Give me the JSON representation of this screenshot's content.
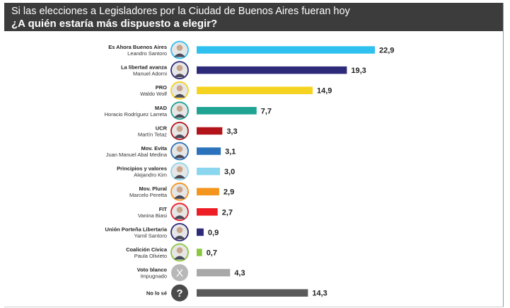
{
  "header": {
    "line1": "Si las elecciones a Legisladores por la Ciudad de Buenos Aires fueran hoy",
    "line2": "¿A quién estaría más dispuesto a elegir?"
  },
  "chart_data": {
    "type": "bar",
    "orientation": "horizontal",
    "title": "Si las elecciones a Legisladores por la Ciudad de Buenos Aires fueran hoy",
    "subtitle": "¿A quién estaría más dispuesto a elegir?",
    "xlim": [
      0,
      22.9
    ],
    "grid": false,
    "legend": "none",
    "categories": [
      {
        "party": "Es Ahora Buenos Aires",
        "name": "Leandro Santoro",
        "value": 22.9,
        "label": "22,9",
        "color": "#2ec0ee",
        "avatar": "portrait",
        "ring": "#2ec0ee"
      },
      {
        "party": "La libertad avanza",
        "name": "Manuel Adorni",
        "value": 19.3,
        "label": "19,3",
        "color": "#2d2a7a",
        "avatar": "portrait",
        "ring": "#2d2a7a"
      },
      {
        "party": "PRO",
        "name": "Waldo Wolf",
        "value": 14.9,
        "label": "14,9",
        "color": "#f5d320",
        "avatar": "portrait",
        "ring": "#f5d320"
      },
      {
        "party": "MAD",
        "name": "Horacio Rodríguez Larreta",
        "value": 7.7,
        "label": "7,7",
        "color": "#1fa392",
        "avatar": "portrait",
        "ring": "#1fa392"
      },
      {
        "party": "UCR",
        "name": "Martín Tetaz",
        "value": 3.3,
        "label": "3,3",
        "color": "#b3141a",
        "avatar": "portrait",
        "ring": "#b3141a"
      },
      {
        "party": "Mov. Evita",
        "name": "Juan Manuel Abal Medina",
        "value": 3.1,
        "label": "3,1",
        "color": "#2a73bc",
        "avatar": "portrait",
        "ring": "#2a73bc"
      },
      {
        "party": "Principios y valores",
        "name": "Alejandro Kim",
        "value": 3.0,
        "label": "3,0",
        "color": "#8bd6ef",
        "avatar": "portrait",
        "ring": "#8bd6ef"
      },
      {
        "party": "Mov. Plural",
        "name": "Marcelo Peretta",
        "value": 2.9,
        "label": "2,9",
        "color": "#f4961e",
        "avatar": "portrait",
        "ring": "#f4961e"
      },
      {
        "party": "FIT",
        "name": "Vanina Biasi",
        "value": 2.7,
        "label": "2,7",
        "color": "#ee1c25",
        "avatar": "portrait",
        "ring": "#ee1c25"
      },
      {
        "party": "Unión Porteña Libertaria",
        "name": "Yamil Santoro",
        "value": 0.9,
        "label": "0,9",
        "color": "#2d2a7a",
        "avatar": "portrait",
        "ring": "#2d2a7a"
      },
      {
        "party": "Coalición Cívica",
        "name": "Paula Olivieto",
        "value": 0.7,
        "label": "0,7",
        "color": "#8cc63f",
        "avatar": "portrait",
        "ring": "#8cc63f"
      },
      {
        "party": "Voto blanco",
        "name": "Impugnado",
        "value": 4.3,
        "label": "4,3",
        "color": "#a8a8a8",
        "avatar": "x-icon",
        "icon_text": "X",
        "ring": "#b8b8b8"
      },
      {
        "party": "No lo sé",
        "name": "",
        "value": 14.3,
        "label": "14,3",
        "color": "#5a5a5a",
        "avatar": "question-icon",
        "icon_text": "?",
        "ring": "#4a4a4a"
      }
    ]
  }
}
